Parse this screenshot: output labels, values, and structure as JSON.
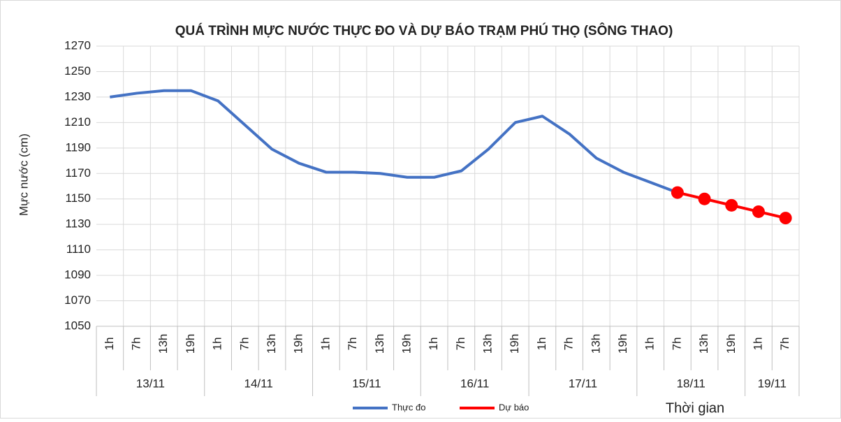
{
  "chart_data": {
    "type": "line",
    "title": "QUÁ TRÌNH MỰC NƯỚC THỰC ĐO VÀ DỰ BÁO TRẠM PHÚ THỌ (SÔNG THAO)",
    "y_label": "Mực nước (cm)",
    "x_label": "Thời gian",
    "categories": [
      "1h",
      "7h",
      "13h",
      "19h",
      "1h",
      "7h",
      "13h",
      "19h",
      "1h",
      "7h",
      "13h",
      "19h",
      "1h",
      "7h",
      "13h",
      "19h",
      "1h",
      "7h",
      "13h",
      "19h",
      "1h",
      "7h",
      "13h",
      "19h",
      "1h",
      "7h"
    ],
    "category_groups": [
      {
        "label": "13/11",
        "count": 4
      },
      {
        "label": "14/11",
        "count": 4
      },
      {
        "label": "15/11",
        "count": 4
      },
      {
        "label": "16/11",
        "count": 4
      },
      {
        "label": "17/11",
        "count": 4
      },
      {
        "label": "18/11",
        "count": 4
      },
      {
        "label": "19/11",
        "count": 2
      }
    ],
    "series": [
      {
        "name": "Thực đo",
        "color": "#4472c4",
        "markers": false,
        "values": [
          1230,
          1233,
          1235,
          1235,
          1227,
          1208,
          1189,
          1178,
          1171,
          1171,
          1170,
          1167,
          1167,
          1172,
          1189,
          1210,
          1215,
          1201,
          1182,
          1171,
          1163,
          1155,
          null,
          null,
          null,
          null
        ]
      },
      {
        "name": "Dự báo",
        "color": "#ff0000",
        "markers": true,
        "values": [
          null,
          null,
          null,
          null,
          null,
          null,
          null,
          null,
          null,
          null,
          null,
          null,
          null,
          null,
          null,
          null,
          null,
          null,
          null,
          null,
          null,
          1155,
          1150,
          1145,
          1140,
          1135
        ]
      }
    ],
    "ylim": [
      1050,
      1270
    ],
    "yticks": [
      1050,
      1070,
      1090,
      1110,
      1130,
      1150,
      1170,
      1190,
      1210,
      1230,
      1250,
      1270
    ],
    "grid": true,
    "legend": "bottom"
  }
}
